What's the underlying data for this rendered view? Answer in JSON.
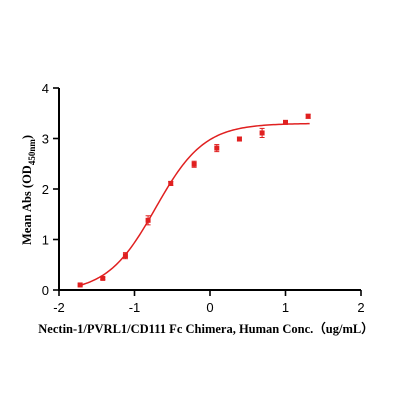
{
  "colors": {
    "series": "#e02020",
    "axis": "#000000"
  },
  "chart_data": {
    "type": "scatter",
    "xlabel": "Nectin-1/PVRL1/CD111 Fc Chimera, Human Conc.（ug/mL）",
    "ylabel_main": "Mean Abs (OD",
    "ylabel_sub": "450nm",
    "ylabel_end": ")",
    "xlim": [
      -2,
      2
    ],
    "ylim": [
      0,
      4
    ],
    "xticks": [
      -2,
      -1,
      0,
      1,
      2
    ],
    "yticks": [
      0,
      1,
      2,
      3,
      4
    ],
    "xtick_labels": [
      "-2",
      "-1",
      "0",
      "1",
      "2"
    ],
    "ytick_labels": [
      "0",
      "1",
      "2",
      "3",
      "4"
    ],
    "grid": false,
    "legend": "none",
    "series": [
      {
        "marker": "square",
        "points": [
          {
            "x": -1.72,
            "y": 0.1,
            "err": 0.02
          },
          {
            "x": -1.42,
            "y": 0.23,
            "err": 0.02
          },
          {
            "x": -1.12,
            "y": 0.68,
            "err": 0.06
          },
          {
            "x": -0.82,
            "y": 1.38,
            "err": 0.09
          },
          {
            "x": -0.52,
            "y": 2.11,
            "err": 0.04
          },
          {
            "x": -0.21,
            "y": 2.49,
            "err": 0.06
          },
          {
            "x": 0.09,
            "y": 2.81,
            "err": 0.07
          },
          {
            "x": 0.39,
            "y": 2.99,
            "err": 0.04
          },
          {
            "x": 0.69,
            "y": 3.11,
            "err": 0.09
          },
          {
            "x": 1.0,
            "y": 3.32,
            "err": 0.02
          },
          {
            "x": 1.3,
            "y": 3.44,
            "err": 0.04
          }
        ],
        "fit": {
          "model": "4PL",
          "bottom": -0.05,
          "top": 3.3,
          "logEC50": -0.72,
          "hill": 1.35
        }
      }
    ]
  }
}
